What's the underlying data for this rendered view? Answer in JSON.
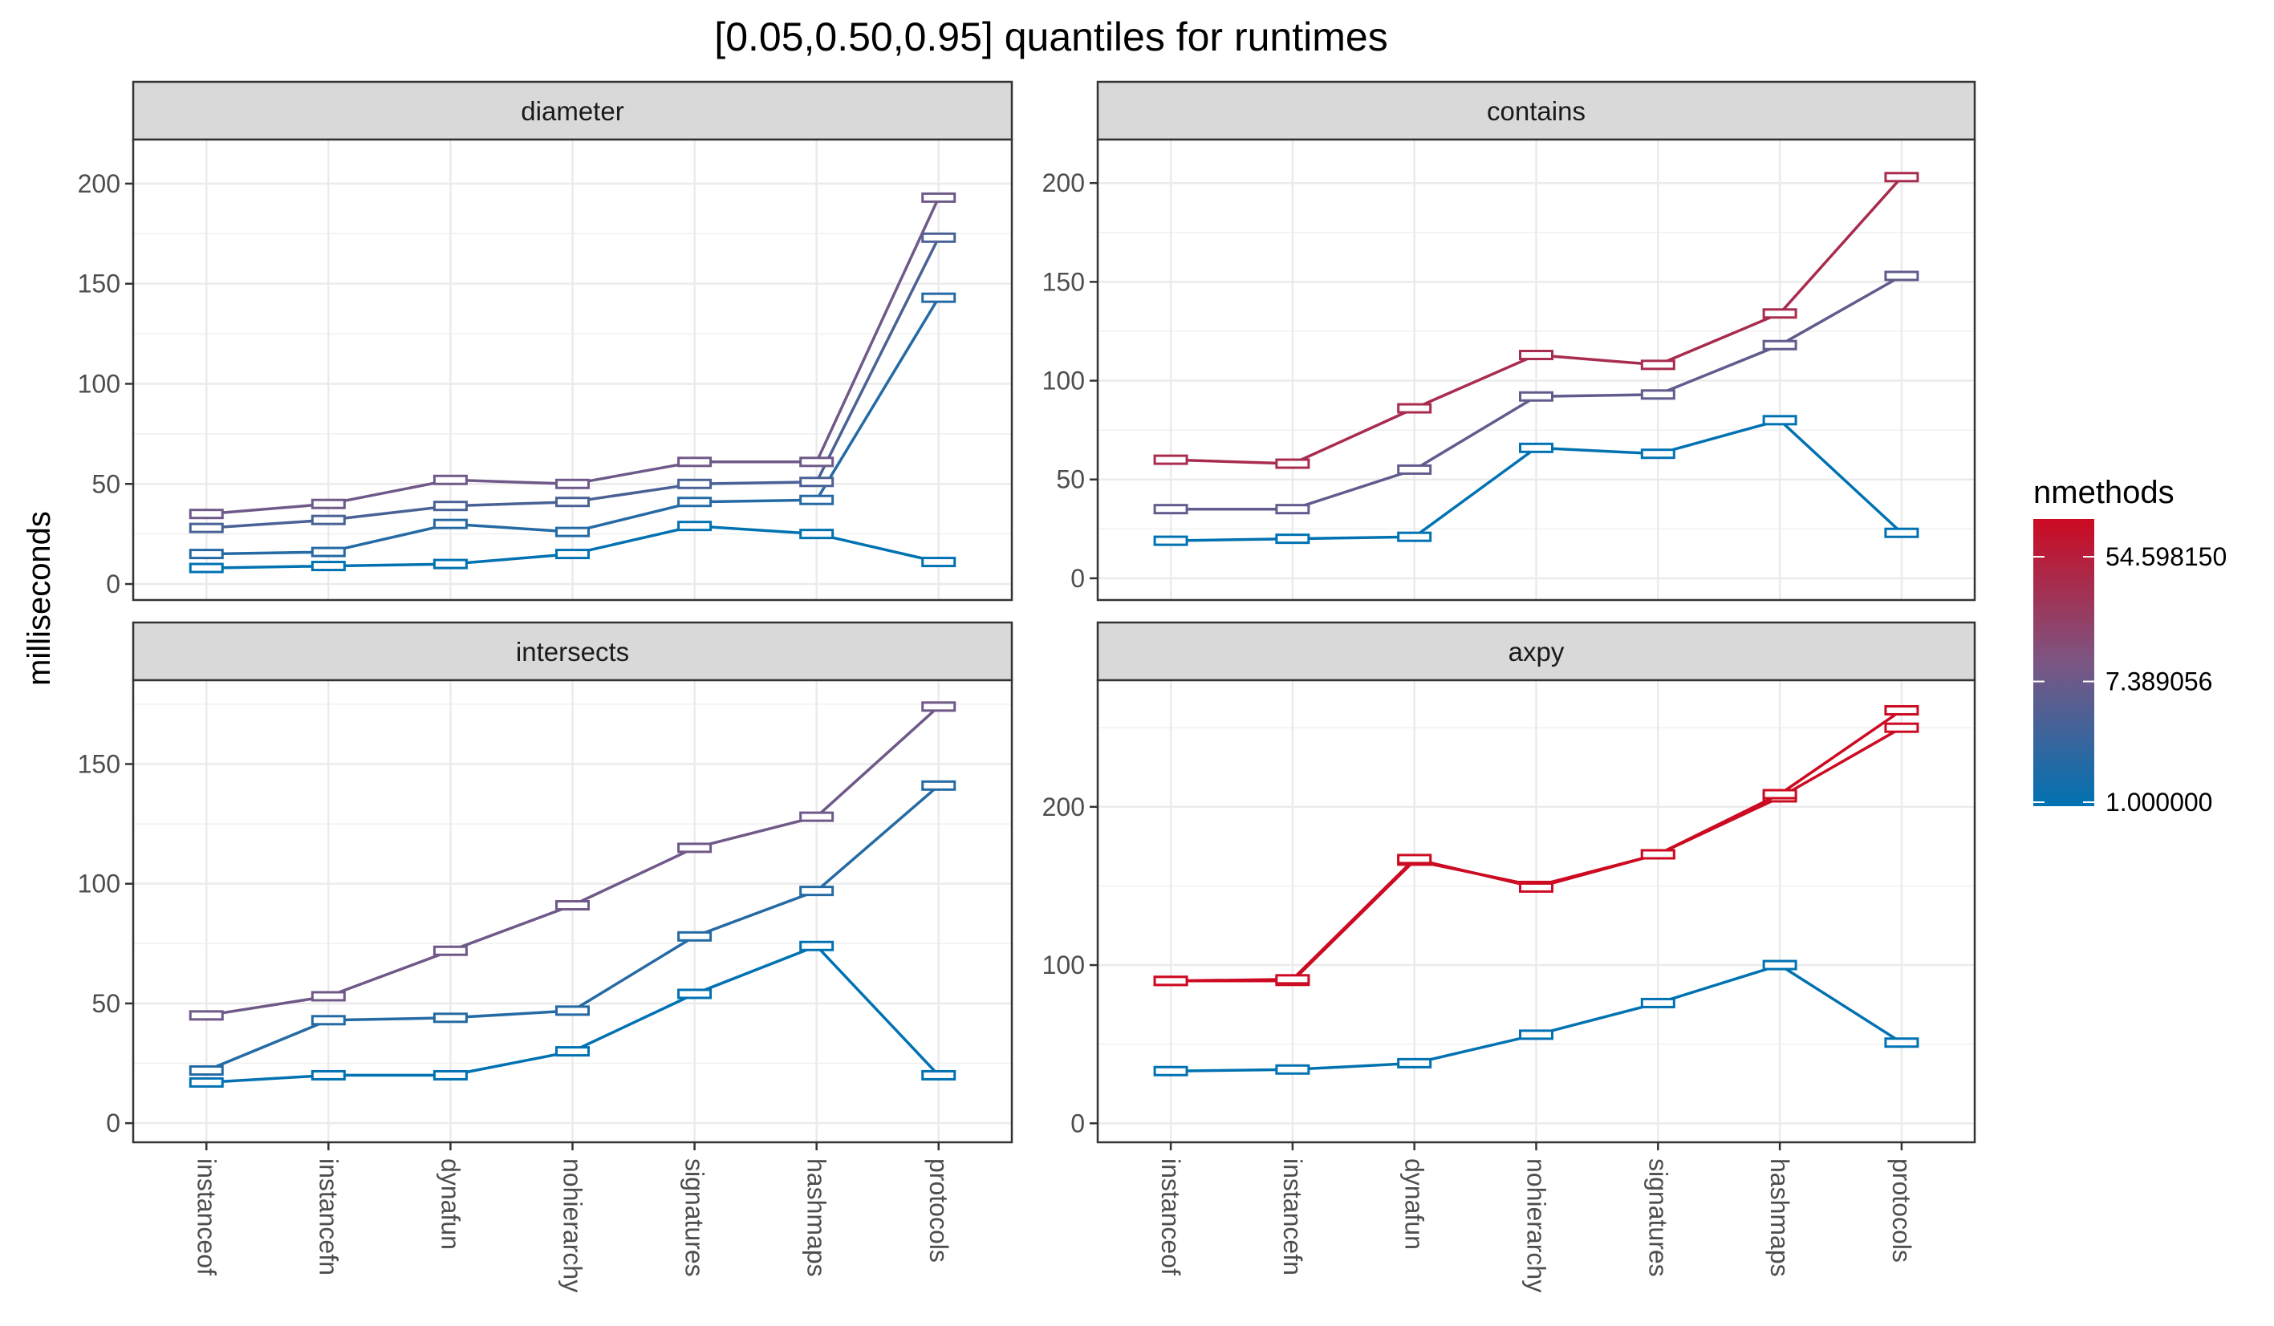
{
  "chart_data": {
    "type": "line",
    "title": "[0.05,0.50,0.95] quantiles for runtimes",
    "ylabel": "milliseconds",
    "xlabel": "",
    "categories": [
      "instanceof",
      "instancefn",
      "dynafun",
      "nohierarchy",
      "signatures",
      "hashmaps",
      "protocols"
    ],
    "grid": true,
    "legend": {
      "title": "nmethods",
      "position": "right",
      "labels": [
        "54.598150",
        "7.389056",
        "1.000000"
      ],
      "values": [
        54.59815,
        7.389056,
        1.0
      ],
      "range": [
        1,
        100
      ],
      "colors": {
        "low": "#0072B2",
        "mid": "#7b5683",
        "high": "#CC0A22"
      }
    },
    "panels": [
      {
        "name": "diameter",
        "ylim": [
          -8,
          222
        ],
        "yticks": [
          0,
          50,
          100,
          150,
          200
        ],
        "series": [
          {
            "nmethods": 1,
            "values": [
              8,
              9,
              10,
              15,
              29,
              25,
              11
            ]
          },
          {
            "nmethods": 2,
            "values": [
              15,
              16,
              30,
              26,
              41,
              42,
              143
            ]
          },
          {
            "nmethods": 4,
            "values": [
              28,
              32,
              39,
              41,
              50,
              51,
              173
            ]
          },
          {
            "nmethods": 8,
            "values": [
              35,
              40,
              52,
              50,
              61,
              61,
              193
            ]
          }
        ]
      },
      {
        "name": "contains",
        "ylim": [
          -11,
          222
        ],
        "yticks": [
          0,
          50,
          100,
          150,
          200
        ],
        "series": [
          {
            "nmethods": 1,
            "values": [
              19,
              20,
              21,
              66,
              63,
              80,
              23
            ]
          },
          {
            "nmethods": 6,
            "values": [
              35,
              35,
              55,
              92,
              93,
              118,
              153
            ]
          },
          {
            "nmethods": 36,
            "values": [
              60,
              58,
              86,
              113,
              108,
              134,
              203
            ]
          }
        ]
      },
      {
        "name": "intersects",
        "ylim": [
          -8,
          185
        ],
        "yticks": [
          0,
          50,
          100,
          150
        ],
        "series": [
          {
            "nmethods": 1,
            "values": [
              17,
              20,
              20,
              30,
              54,
              74,
              20
            ]
          },
          {
            "nmethods": 2,
            "values": [
              22,
              43,
              44,
              47,
              78,
              97,
              141
            ]
          },
          {
            "nmethods": 8,
            "values": [
              45,
              53,
              72,
              91,
              115,
              128,
              174
            ]
          }
        ]
      },
      {
        "name": "axpy",
        "ylim": [
          -12,
          280
        ],
        "yticks": [
          0,
          100,
          200
        ],
        "series": [
          {
            "nmethods": 1,
            "values": [
              33,
              34,
              38,
              56,
              76,
              100,
              51
            ]
          },
          {
            "nmethods": 100,
            "values": [
              90,
              90,
              166,
              150,
              170,
              206,
              250
            ]
          },
          {
            "nmethods": 100,
            "values": [
              90,
              91,
              167,
              149,
              170,
              208,
              261
            ]
          }
        ]
      }
    ]
  }
}
